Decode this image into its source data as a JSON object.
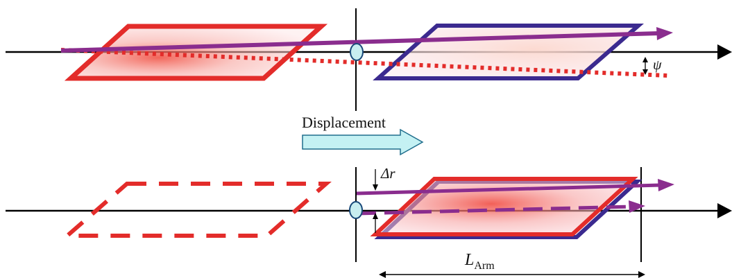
{
  "labels": {
    "angle": "ψ",
    "displacement": "Displacement",
    "delta_r": "Δr",
    "arm_length": {
      "main": "L",
      "subscript": "Arm"
    }
  },
  "colors": {
    "red_frame": "#e32c2a",
    "blue_frame": "#3b2a8f",
    "purple_beam": "#8a2d8e",
    "axis": "#000000",
    "lens_fill": "#c8eef0",
    "lens_stroke": "#1a4a7a",
    "arrow_fill": "#c4f1f3",
    "arrow_stroke": "#1e6d8c"
  }
}
